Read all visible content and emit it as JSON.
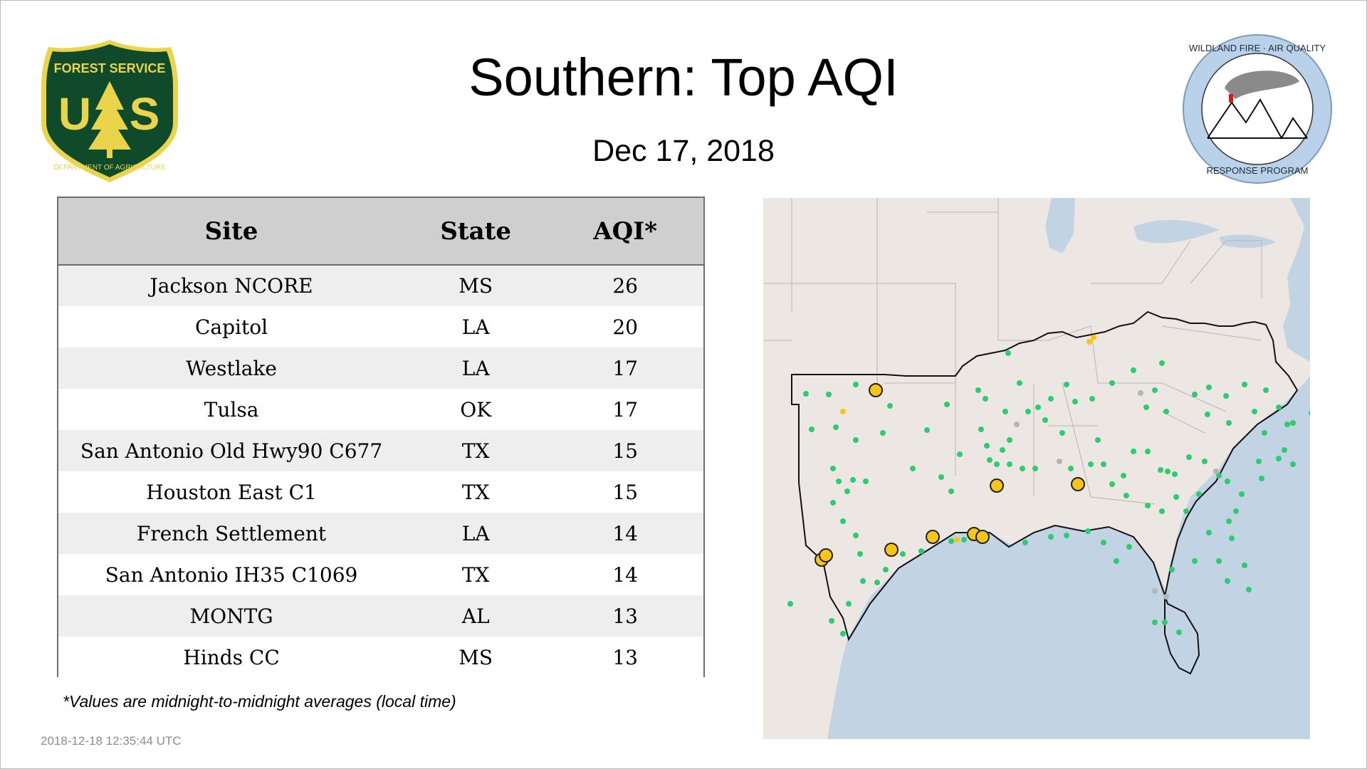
{
  "header": {
    "title": "Southern: Top AQI",
    "date": "Dec 17, 2018"
  },
  "logos": {
    "left": {
      "top_text": "FOREST SERVICE",
      "letters": "U S",
      "bottom_text": "DEPARTMENT OF AGRICULTURE"
    },
    "right": {
      "ring_top": "WILDLAND FIRE · AIR QUALITY",
      "ring_bottom": "RESPONSE PROGRAM"
    }
  },
  "table": {
    "columns": [
      "Site",
      "State",
      "AQI*"
    ],
    "rows": [
      [
        "Jackson NCORE",
        "MS",
        "26"
      ],
      [
        "Capitol",
        "LA",
        "20"
      ],
      [
        "Westlake",
        "LA",
        "17"
      ],
      [
        "Tulsa",
        "OK",
        "17"
      ],
      [
        "San Antonio Old Hwy90 C677",
        "TX",
        "15"
      ],
      [
        "Houston East C1",
        "TX",
        "15"
      ],
      [
        "French Settlement",
        "LA",
        "14"
      ],
      [
        "San Antonio IH35 C1069",
        "TX",
        "14"
      ],
      [
        "MONTG",
        "AL",
        "13"
      ],
      [
        "Hinds CC",
        "MS",
        "13"
      ]
    ]
  },
  "footnote": "*Values are midnight-to-midnight averages (local time)",
  "timestamp": "2018-12-18 12:35:44 UTC",
  "colors": {
    "header_bg": "#cfcfcf",
    "row_alt": "#eeeeee",
    "aqi_good": "#2ecc71",
    "aqi_moderate": "#f5c518",
    "no_data": "#b5b5b5",
    "water": "#c2d3e3",
    "land": "#ede7e4",
    "fs_green": "#0f4a2b",
    "fs_gold": "#e9d44c"
  }
}
